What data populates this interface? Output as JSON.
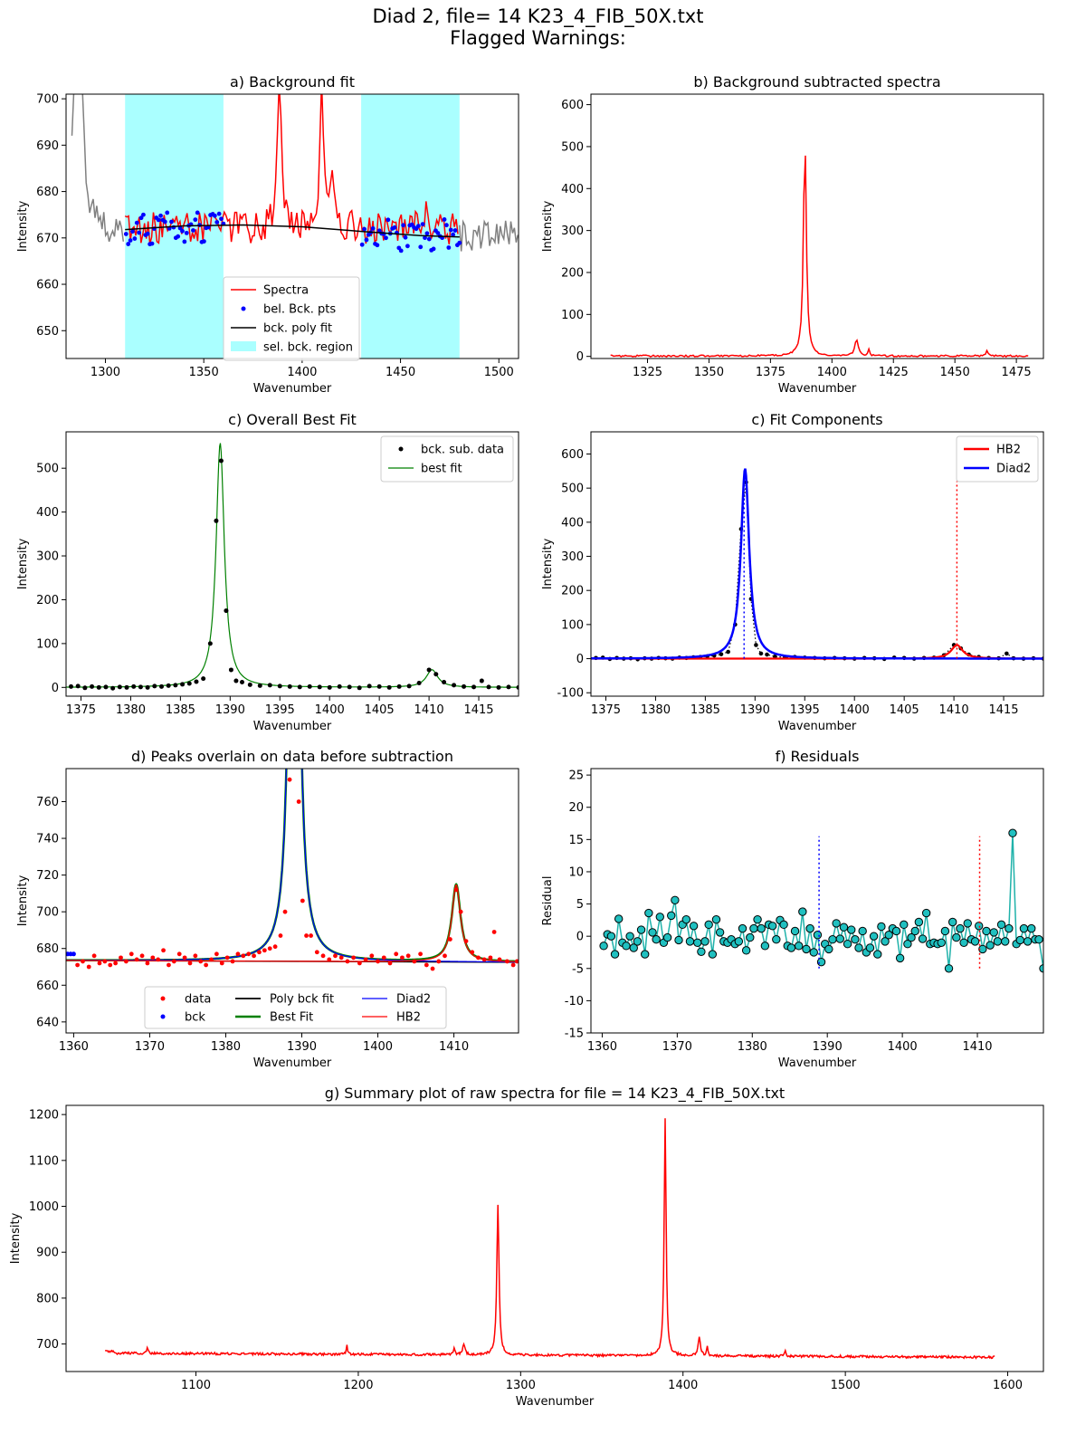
{
  "suptitle": {
    "line1": "Diad 2, file= 14 K23_4_FIB_50X.txt",
    "line2": "Flagged Warnings:"
  },
  "colors": {
    "spectra": "#ff0000",
    "raw_outside": "#808080",
    "bck_pts": "#0000ff",
    "poly": "#000000",
    "region": "#aaffff",
    "best_fit": "#008000",
    "diad2": "#0000ff",
    "hb2": "#ff0000",
    "residual": "#20b2aa",
    "residual_marker": "#20c0c0"
  },
  "chart_data": [
    {
      "id": "a",
      "type": "line",
      "title": "a) Background fit",
      "xlabel": "Wavenumber",
      "ylabel": "Intensity",
      "xlim": [
        1280,
        1510
      ],
      "ylim": [
        644,
        701
      ],
      "xticks": [
        1300,
        1350,
        1400,
        1450,
        1500
      ],
      "yticks": [
        650,
        660,
        670,
        680,
        690,
        700
      ],
      "regions": [
        [
          1310,
          1360
        ],
        [
          1430,
          1480
        ]
      ],
      "raw_left": {
        "x": [
          1280,
          1283,
          1285,
          1287,
          1289,
          1292,
          1296,
          1300,
          1304,
          1308,
          1310
        ],
        "y": [
          675,
          690,
          705,
          705,
          690,
          673,
          671,
          674,
          672,
          670,
          671
        ]
      },
      "raw_right": {
        "x": [
          1480,
          1484,
          1488,
          1492,
          1496,
          1499,
          1501,
          1504,
          1507,
          1510
        ],
        "y": [
          670,
          671,
          669,
          673,
          675,
          679,
          668,
          671,
          666,
          669
        ]
      },
      "spectrum_peaks": [
        [
          1388.5,
          705
        ],
        [
          1410,
          704
        ],
        [
          1415,
          683
        ],
        [
          1463,
          678
        ]
      ],
      "poly_fit": {
        "x": [
          1310,
          1340,
          1370,
          1400,
          1430,
          1460,
          1480
        ],
        "y": [
          671.8,
          672.6,
          672.8,
          672.4,
          671.4,
          670.5,
          670.2
        ]
      },
      "legend": [
        "Spectra",
        "bel. Bck. pts",
        "bck. poly fit",
        "sel. bck. region"
      ]
    },
    {
      "id": "b",
      "type": "line",
      "title": "b) Background subtracted spectra",
      "xlabel": "Wavenumber",
      "ylabel": "Intensity",
      "xlim": [
        1302,
        1486
      ],
      "ylim": [
        -5,
        625
      ],
      "xticks": [
        1325,
        1350,
        1375,
        1400,
        1425,
        1450,
        1475
      ],
      "yticks": [
        0,
        100,
        200,
        300,
        400,
        500,
        600
      ],
      "x_range": [
        1310,
        1480
      ],
      "peaks": [
        [
          1389,
          515,
          0.7
        ],
        [
          1410,
          38,
          0.8
        ],
        [
          1415,
          15,
          0.4
        ],
        [
          1463,
          12,
          0.5
        ]
      ]
    },
    {
      "id": "c1",
      "type": "scatter",
      "title": "c) Overall Best Fit",
      "xlabel": "Wavenumber",
      "ylabel": "Intensity",
      "xlim": [
        1373.5,
        1419
      ],
      "ylim": [
        -20,
        583
      ],
      "xticks": [
        1375,
        1380,
        1385,
        1390,
        1395,
        1400,
        1405,
        1410,
        1415
      ],
      "yticks": [
        0,
        100,
        200,
        300,
        400,
        500
      ],
      "fit_peaks": [
        [
          1389.0,
          558,
          0.5
        ],
        [
          1410.3,
          40,
          0.7
        ]
      ],
      "data_points": [
        [
          1374,
          2
        ],
        [
          1374.7,
          3
        ],
        [
          1375.4,
          -1
        ],
        [
          1376.1,
          2
        ],
        [
          1376.8,
          0
        ],
        [
          1377.5,
          1
        ],
        [
          1378.2,
          -2
        ],
        [
          1378.9,
          1
        ],
        [
          1379.6,
          0
        ],
        [
          1380.3,
          2
        ],
        [
          1381,
          1
        ],
        [
          1381.7,
          0
        ],
        [
          1382.4,
          3
        ],
        [
          1383.1,
          2
        ],
        [
          1383.8,
          4
        ],
        [
          1384.5,
          5
        ],
        [
          1385.2,
          7
        ],
        [
          1385.9,
          9
        ],
        [
          1386.6,
          13
        ],
        [
          1387.3,
          20
        ],
        [
          1388.0,
          100
        ],
        [
          1388.6,
          380
        ],
        [
          1389.1,
          517
        ],
        [
          1389.6,
          175
        ],
        [
          1390.1,
          40
        ],
        [
          1390.6,
          15
        ],
        [
          1391.2,
          12
        ],
        [
          1392,
          6
        ],
        [
          1393,
          4
        ],
        [
          1394,
          5
        ],
        [
          1395,
          3
        ],
        [
          1396,
          2
        ],
        [
          1397,
          1
        ],
        [
          1398,
          2
        ],
        [
          1399,
          1
        ],
        [
          1400,
          0
        ],
        [
          1401,
          2
        ],
        [
          1402,
          1
        ],
        [
          1403,
          -1
        ],
        [
          1404,
          3
        ],
        [
          1405,
          2
        ],
        [
          1406,
          0
        ],
        [
          1407,
          2
        ],
        [
          1408,
          3
        ],
        [
          1409,
          10
        ],
        [
          1410,
          40
        ],
        [
          1410.7,
          30
        ],
        [
          1411.5,
          12
        ],
        [
          1412.5,
          5
        ],
        [
          1413.5,
          2
        ],
        [
          1414.5,
          1
        ],
        [
          1415.3,
          15
        ],
        [
          1416,
          1
        ],
        [
          1417,
          0
        ],
        [
          1418,
          1
        ],
        [
          1419,
          0
        ]
      ],
      "legend": [
        "bck. sub. data",
        "best fit"
      ]
    },
    {
      "id": "c2",
      "type": "line",
      "title": "c) Fit Components",
      "xlabel": "Wavenumber",
      "ylabel": "Intensity",
      "xlim": [
        1373.5,
        1419
      ],
      "ylim": [
        -110,
        665
      ],
      "xticks": [
        1375,
        1380,
        1385,
        1390,
        1395,
        1400,
        1405,
        1410,
        1415
      ],
      "yticks": [
        -100,
        0,
        100,
        200,
        300,
        400,
        500,
        600
      ],
      "diad2_peak": [
        1389.0,
        558,
        0.5
      ],
      "hb2_peak": [
        1410.3,
        40,
        0.7
      ],
      "vlines": [
        {
          "x": 1388.9,
          "y": [
            0,
            518
          ],
          "color": "diad2"
        },
        {
          "x": 1410.3,
          "y": [
            0,
            520
          ],
          "color": "hb2"
        }
      ],
      "legend": [
        "HB2",
        "Diad2"
      ]
    },
    {
      "id": "d",
      "type": "scatter",
      "title": "d) Peaks overlain on data before subtraction",
      "xlabel": "Wavenumber",
      "ylabel": "Intensity",
      "xlim": [
        1359,
        1418.5
      ],
      "ylim": [
        634,
        778
      ],
      "xticks": [
        1360,
        1370,
        1380,
        1390,
        1400,
        1410
      ],
      "yticks": [
        640,
        660,
        680,
        700,
        720,
        740,
        760
      ],
      "baseline": [
        673.5,
        672.5
      ],
      "diad2_peak": [
        1389.0,
        558,
        0.5
      ],
      "hb2_peak": [
        1410.3,
        42,
        0.7
      ],
      "bck_points": [
        [
          1359.2,
          677
        ],
        [
          1359.6,
          677
        ],
        [
          1360,
          677
        ]
      ],
      "data_points": [
        [
          1360.5,
          671
        ],
        [
          1361.2,
          673
        ],
        [
          1362,
          670
        ],
        [
          1362.7,
          676
        ],
        [
          1363.4,
          672
        ],
        [
          1364.1,
          673
        ],
        [
          1364.8,
          671
        ],
        [
          1365.5,
          672
        ],
        [
          1366.2,
          675
        ],
        [
          1366.9,
          673
        ],
        [
          1367.6,
          677
        ],
        [
          1368.3,
          674
        ],
        [
          1369,
          676
        ],
        [
          1369.7,
          672
        ],
        [
          1370.4,
          675
        ],
        [
          1371.1,
          674
        ],
        [
          1371.8,
          679
        ],
        [
          1372.5,
          671
        ],
        [
          1373.2,
          673
        ],
        [
          1373.9,
          677
        ],
        [
          1374.6,
          675
        ],
        [
          1375.3,
          672
        ],
        [
          1376,
          676
        ],
        [
          1376.7,
          673
        ],
        [
          1377.4,
          671
        ],
        [
          1378.1,
          674
        ],
        [
          1378.8,
          677
        ],
        [
          1379.5,
          672
        ],
        [
          1380.2,
          675
        ],
        [
          1380.9,
          673
        ],
        [
          1381.6,
          677
        ],
        [
          1382.3,
          676
        ],
        [
          1383,
          677
        ],
        [
          1383.7,
          676
        ],
        [
          1384.4,
          678
        ],
        [
          1385.1,
          679
        ],
        [
          1385.8,
          680
        ],
        [
          1386.5,
          681
        ],
        [
          1387.2,
          687
        ],
        [
          1387.8,
          700
        ],
        [
          1388.4,
          772
        ],
        [
          1389.6,
          760
        ],
        [
          1390.1,
          706
        ],
        [
          1390.6,
          687
        ],
        [
          1391.2,
          687
        ],
        [
          1392,
          678
        ],
        [
          1392.8,
          676
        ],
        [
          1393.6,
          674
        ],
        [
          1394.4,
          676
        ],
        [
          1395.2,
          675
        ],
        [
          1396,
          673
        ],
        [
          1396.8,
          675
        ],
        [
          1397.6,
          672
        ],
        [
          1398.4,
          674
        ],
        [
          1399.2,
          676
        ],
        [
          1400,
          673
        ],
        [
          1400.8,
          675
        ],
        [
          1401.6,
          672
        ],
        [
          1402.4,
          677
        ],
        [
          1403.2,
          675
        ],
        [
          1404,
          676
        ],
        [
          1404.8,
          673
        ],
        [
          1405.6,
          677
        ],
        [
          1406.4,
          671
        ],
        [
          1407.2,
          669
        ],
        [
          1408,
          673
        ],
        [
          1408.8,
          676
        ],
        [
          1409.5,
          685
        ],
        [
          1410.3,
          712
        ],
        [
          1410.9,
          700
        ],
        [
          1411.6,
          684
        ],
        [
          1412.4,
          678
        ],
        [
          1413.2,
          675
        ],
        [
          1414,
          674
        ],
        [
          1414.8,
          675
        ],
        [
          1415.3,
          689
        ],
        [
          1416,
          674
        ],
        [
          1417,
          673
        ],
        [
          1417.8,
          671
        ],
        [
          1418.3,
          673
        ]
      ],
      "legend": [
        "data",
        "bck",
        "Poly bck fit",
        "Best Fit",
        "Diad2",
        "HB2"
      ]
    },
    {
      "id": "f",
      "type": "line",
      "title": "f) Residuals",
      "xlabel": "Wavenumber",
      "ylabel": "Residual",
      "xlim": [
        1358.5,
        1418.8
      ],
      "ylim": [
        -15,
        26
      ],
      "xticks": [
        1360,
        1370,
        1380,
        1390,
        1400,
        1410
      ],
      "yticks": [
        -15,
        -10,
        -5,
        0,
        5,
        10,
        15,
        20,
        25
      ],
      "x": [
        1360.2,
        1360.7,
        1361.2,
        1361.7,
        1362.2,
        1362.7,
        1363.2,
        1363.7,
        1364.2,
        1364.7,
        1365.2,
        1365.7,
        1366.2,
        1366.7,
        1367.2,
        1367.7,
        1368.2,
        1368.7,
        1369.2,
        1369.7,
        1370.2,
        1370.7,
        1371.2,
        1371.7,
        1372.2,
        1372.7,
        1373.2,
        1373.7,
        1374.2,
        1374.7,
        1375.2,
        1375.7,
        1376.2,
        1376.7,
        1377.2,
        1377.7,
        1378.2,
        1378.7,
        1379.2,
        1379.7,
        1380.2,
        1380.7,
        1381.2,
        1381.7,
        1382.2,
        1382.7,
        1383.2,
        1383.7,
        1384.2,
        1384.7,
        1385.2,
        1385.7,
        1386.2,
        1386.7,
        1387.2,
        1387.7,
        1388.2,
        1388.7,
        1389.2,
        1389.7,
        1390.2,
        1390.7,
        1391.2,
        1391.7,
        1392.2,
        1392.7,
        1393.2,
        1393.7,
        1394.2,
        1394.7,
        1395.2,
        1395.7,
        1396.2,
        1396.7,
        1397.2,
        1397.7,
        1398.2,
        1398.7,
        1399.2,
        1399.7,
        1400.2,
        1400.7,
        1401.2,
        1401.7,
        1402.2,
        1402.7,
        1403.2,
        1403.7,
        1404.2,
        1404.7,
        1405.2,
        1405.7,
        1406.2,
        1406.7,
        1407.2,
        1407.7,
        1408.2,
        1408.7,
        1409.2,
        1409.7,
        1410.2,
        1410.7,
        1411.2,
        1411.7,
        1412.2,
        1412.7,
        1413.2,
        1413.7,
        1414.2,
        1414.7,
        1415.2,
        1415.7,
        1416.2,
        1416.7,
        1417.2,
        1417.7,
        1418.2,
        1418.8
      ],
      "y": [
        -1.5,
        0.3,
        0,
        -2.8,
        2.7,
        -1,
        -1.5,
        0,
        -1.8,
        -0.8,
        1,
        -2.8,
        3.6,
        0.6,
        -0.5,
        3,
        -1,
        -0.2,
        3.2,
        5.6,
        -0.6,
        1.8,
        2.6,
        -0.8,
        1.6,
        -1,
        -2.4,
        -0.8,
        1.8,
        -2.8,
        2.6,
        0.6,
        -0.8,
        -1,
        -0.5,
        -1.2,
        -0.8,
        1.2,
        -2.2,
        -0.2,
        1.2,
        2.6,
        1.2,
        -1.5,
        1.8,
        1.6,
        -0.5,
        2.5,
        1.8,
        -1.5,
        -1.8,
        0.8,
        -1.5,
        3.8,
        -2,
        1.2,
        -2.5,
        0.2,
        -4,
        -1.2,
        -2,
        -0.5,
        2,
        -0.4,
        1.4,
        -1.2,
        1,
        -0.5,
        -1.8,
        0.8,
        -2.5,
        -1.8,
        0,
        -2.8,
        1.5,
        -0.8,
        0.2,
        1.2,
        0.8,
        -3.4,
        1.8,
        -1.2,
        -0.2,
        0.8,
        2.2,
        -0.4,
        3.6,
        -1.2,
        -1,
        -1.2,
        -1,
        0.8,
        -5,
        2.2,
        -0.2,
        1.2,
        -1,
        2,
        -0.5,
        -0.8,
        1.6,
        -2,
        0.8,
        -1.4,
        0.6,
        -0.8,
        1.8,
        -0.8,
        1.2,
        16,
        -1.2,
        -0.6,
        1.2,
        -0.8,
        1.2,
        -0.5,
        -0.5,
        -5
      ],
      "vlines": [
        {
          "x": 1388.9,
          "y": [
            -5,
            15.5
          ],
          "color": "diad2"
        },
        {
          "x": 1410.3,
          "y": [
            -5,
            15.5
          ],
          "color": "hb2"
        }
      ]
    },
    {
      "id": "g",
      "type": "line",
      "title": "g) Summary plot of raw spectra for file = 14 K23_4_FIB_50X.txt",
      "xlabel": "Wavenumber",
      "ylabel": "Intensity",
      "xlim": [
        1020,
        1622
      ],
      "ylim": [
        640,
        1220
      ],
      "xticks": [
        1100,
        1200,
        1300,
        1400,
        1500,
        1600
      ],
      "yticks": [
        700,
        800,
        900,
        1000,
        1100,
        1200
      ],
      "x_range": [
        1044,
        1592
      ],
      "peaks": [
        [
          1286,
          1000,
          0.8
        ],
        [
          1389,
          1190,
          0.7
        ],
        [
          1410,
          715,
          0.8
        ],
        [
          1265,
          695,
          0.8
        ],
        [
          1259,
          685,
          0.6
        ],
        [
          1193,
          690,
          0.5
        ],
        [
          1070,
          683,
          0.6
        ],
        [
          1463,
          685,
          0.6
        ],
        [
          1415,
          690,
          0.5
        ]
      ]
    }
  ]
}
